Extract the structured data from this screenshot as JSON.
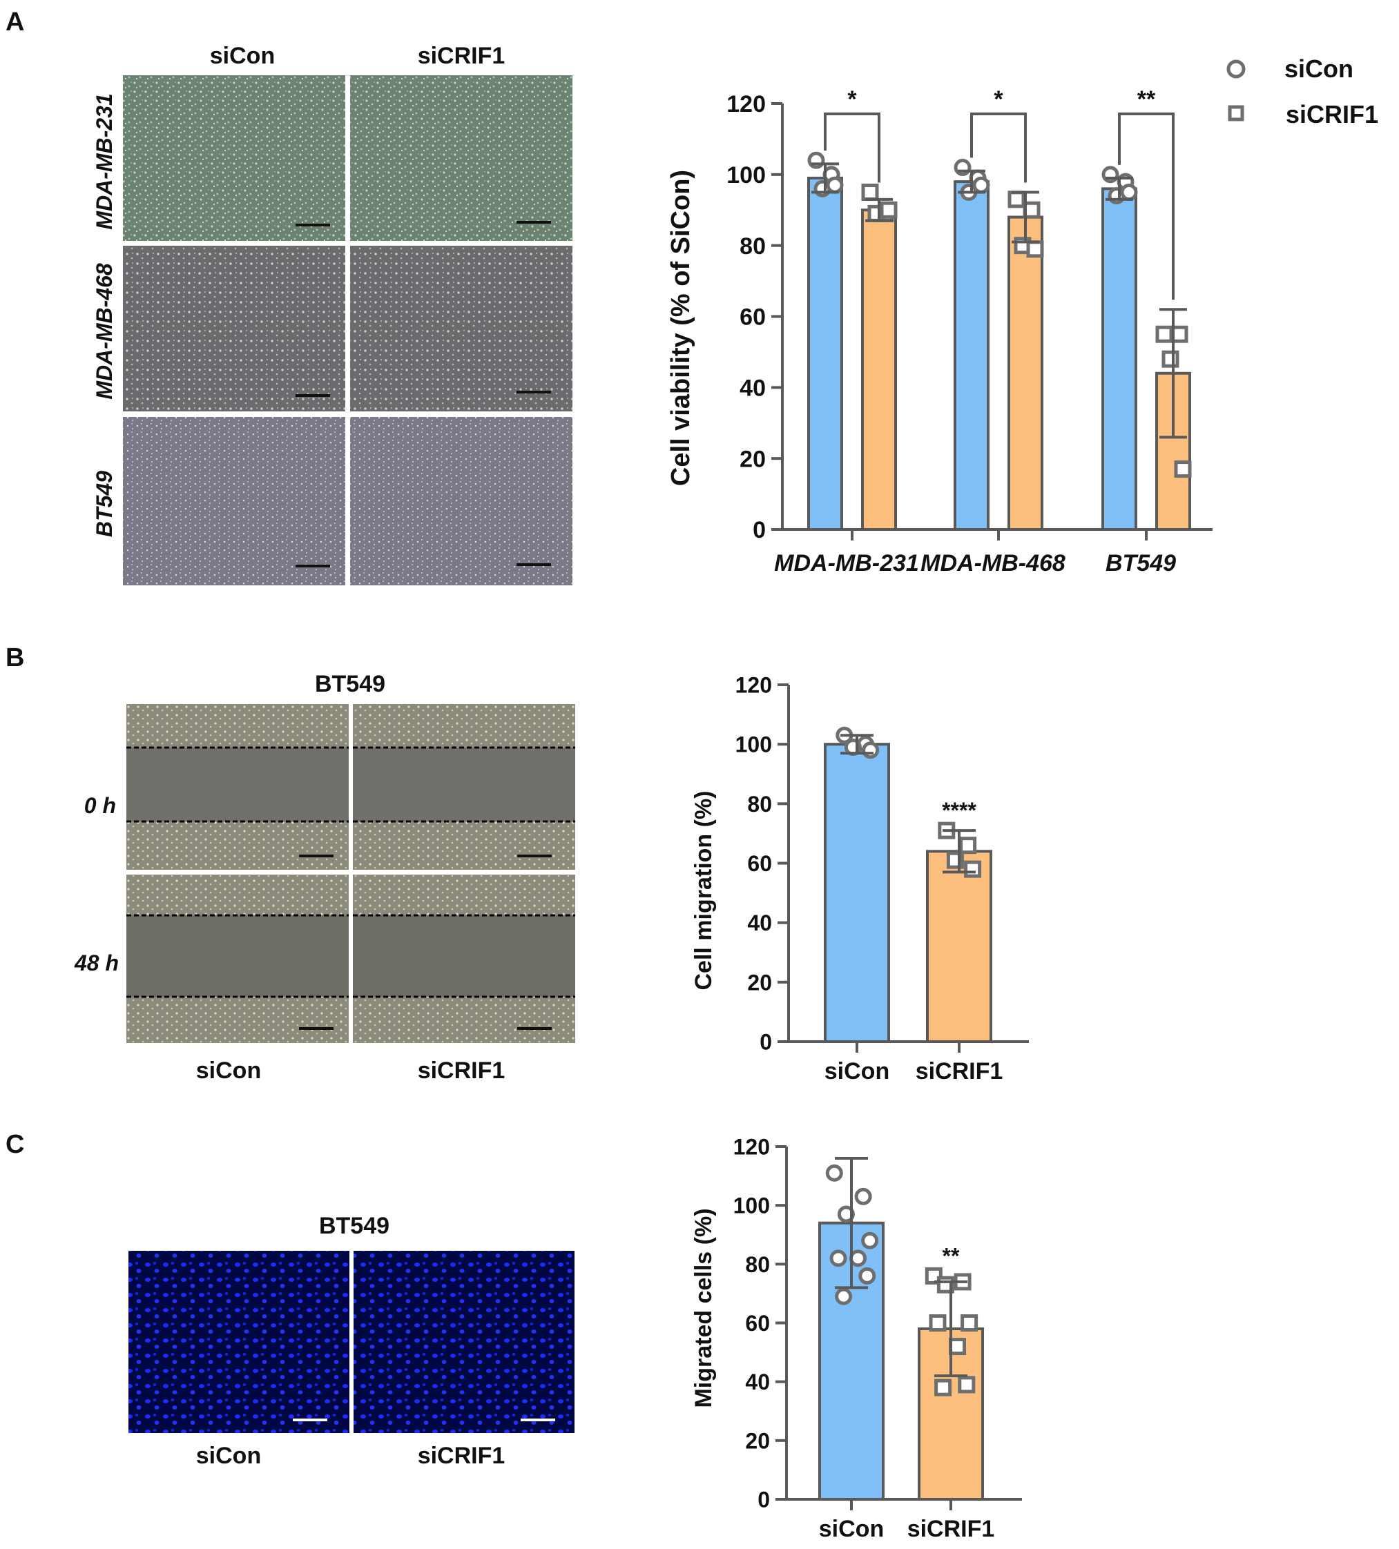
{
  "panels": {
    "A": {
      "letter": "A",
      "col_labels": [
        "siCon",
        "siCRIF1"
      ],
      "row_labels": [
        "MDA-MB-231",
        "MDA-MB-468",
        "BT549"
      ]
    },
    "B": {
      "letter": "B",
      "title": "BT549",
      "col_labels": [
        "siCon",
        "siCRIF1"
      ],
      "row_labels": [
        "0 h",
        "48 h"
      ]
    },
    "C": {
      "letter": "C",
      "title": "BT549",
      "col_labels": [
        "siCon",
        "siCRIF1"
      ]
    }
  },
  "legend": [
    "siCon",
    "siCRIF1"
  ],
  "colors": {
    "siCon": "#7ec0f7",
    "siCRIF1": "#fcbf7e",
    "stroke": "#595959",
    "point": "#6e6e6e"
  },
  "chart_data": [
    {
      "id": "A",
      "type": "bar",
      "ylabel": "Cell viability (% of SiCon)",
      "ylim": [
        0,
        120
      ],
      "yticks": [
        0,
        20,
        40,
        60,
        80,
        100,
        120
      ],
      "categories": [
        "MDA-MB-231",
        "MDA-MB-468",
        "BT549"
      ],
      "series": [
        {
          "name": "siCon",
          "marker": "circle",
          "values": [
            99,
            98,
            96
          ],
          "sd": [
            4,
            3,
            3
          ],
          "points": [
            [
              104,
              100,
              96,
              97
            ],
            [
              102,
              99,
              95,
              97
            ],
            [
              100,
              98,
              94,
              95
            ]
          ]
        },
        {
          "name": "siCRIF1",
          "marker": "square",
          "values": [
            90,
            88,
            44
          ],
          "sd": [
            3,
            7,
            18
          ],
          "points": [
            [
              95,
              89,
              89,
              90
            ],
            [
              93,
              90,
              80,
              79
            ],
            [
              55,
              55,
              48,
              17
            ]
          ]
        }
      ],
      "significance": [
        "*",
        "*",
        "**"
      ]
    },
    {
      "id": "B",
      "type": "bar",
      "ylabel": "Cell migration (%)",
      "ylim": [
        0,
        120
      ],
      "yticks": [
        0,
        20,
        40,
        60,
        80,
        100,
        120
      ],
      "categories": [
        "siCon",
        "siCRIF1"
      ],
      "values": [
        100,
        64
      ],
      "sd": [
        3,
        7
      ],
      "points": [
        [
          103,
          100,
          99,
          98
        ],
        [
          71,
          66,
          61,
          58
        ]
      ],
      "significance": "****"
    },
    {
      "id": "C",
      "type": "bar",
      "ylabel": "Migrated cells (%)",
      "ylim": [
        0,
        120
      ],
      "yticks": [
        0,
        20,
        40,
        60,
        80,
        100,
        120
      ],
      "categories": [
        "siCon",
        "siCRIF1"
      ],
      "values": [
        94,
        58
      ],
      "sd": [
        22,
        16
      ],
      "points": [
        [
          111,
          103,
          97,
          88,
          82,
          82,
          76,
          69
        ],
        [
          76,
          74,
          73,
          60,
          60,
          52,
          39,
          38
        ]
      ],
      "significance": "**"
    }
  ]
}
